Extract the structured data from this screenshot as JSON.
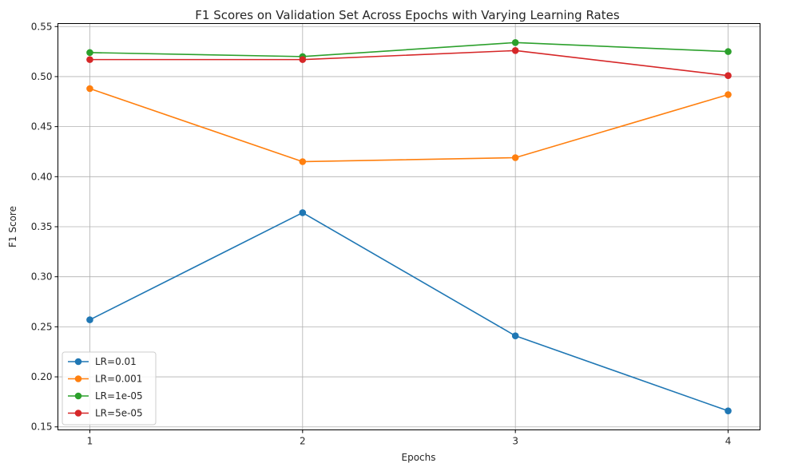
{
  "chart_data": {
    "type": "line",
    "title": "F1 Scores on Validation Set Across Epochs with Varying Learning Rates",
    "xlabel": "Epochs",
    "ylabel": "F1 Score",
    "x": [
      1,
      2,
      3,
      4
    ],
    "xticks": [
      "1",
      "2",
      "3",
      "4"
    ],
    "yticks": [
      "0.15",
      "0.20",
      "0.25",
      "0.30",
      "0.35",
      "0.40",
      "0.45",
      "0.50",
      "0.55"
    ],
    "ylim": [
      0.147,
      0.553
    ],
    "grid": true,
    "legend_position": "lower-left",
    "series": [
      {
        "name": "LR=0.01",
        "color": "#1f77b4",
        "values": [
          0.257,
          0.364,
          0.241,
          0.166
        ]
      },
      {
        "name": "LR=0.001",
        "color": "#ff7f0e",
        "values": [
          0.488,
          0.415,
          0.419,
          0.482
        ]
      },
      {
        "name": "LR=1e-05",
        "color": "#2ca02c",
        "values": [
          0.524,
          0.52,
          0.534,
          0.525
        ]
      },
      {
        "name": "LR=5e-05",
        "color": "#d62728",
        "values": [
          0.517,
          0.517,
          0.526,
          0.501
        ]
      }
    ]
  }
}
